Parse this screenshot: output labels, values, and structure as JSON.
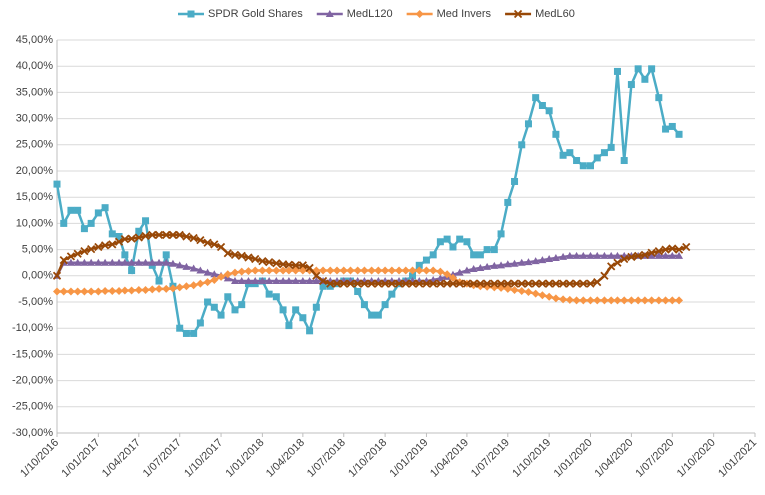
{
  "chart_data": {
    "type": "line",
    "x": [
      "2016-10-01",
      "2016-10-16",
      "2016-11-01",
      "2016-11-16",
      "2016-12-01",
      "2016-12-16",
      "2017-01-01",
      "2017-01-16",
      "2017-02-01",
      "2017-02-16",
      "2017-03-01",
      "2017-03-16",
      "2017-04-01",
      "2017-04-16",
      "2017-05-01",
      "2017-05-16",
      "2017-06-01",
      "2017-06-16",
      "2017-07-01",
      "2017-07-16",
      "2017-08-01",
      "2017-08-16",
      "2017-09-01",
      "2017-09-16",
      "2017-10-01",
      "2017-10-16",
      "2017-11-01",
      "2017-11-16",
      "2017-12-01",
      "2017-12-16",
      "2018-01-01",
      "2018-01-16",
      "2018-02-01",
      "2018-02-16",
      "2018-03-01",
      "2018-03-16",
      "2018-04-01",
      "2018-04-16",
      "2018-05-01",
      "2018-05-16",
      "2018-06-01",
      "2018-06-16",
      "2018-07-01",
      "2018-07-16",
      "2018-08-01",
      "2018-08-16",
      "2018-09-01",
      "2018-09-16",
      "2018-10-01",
      "2018-10-16",
      "2018-11-01",
      "2018-11-16",
      "2018-12-01",
      "2018-12-16",
      "2019-01-01",
      "2019-01-16",
      "2019-02-01",
      "2019-02-16",
      "2019-03-01",
      "2019-03-16",
      "2019-04-01",
      "2019-04-16",
      "2019-05-01",
      "2019-05-16",
      "2019-06-01",
      "2019-06-16",
      "2019-07-01",
      "2019-07-16",
      "2019-08-01",
      "2019-08-16",
      "2019-09-01",
      "2019-09-16",
      "2019-10-01",
      "2019-10-16",
      "2019-11-01",
      "2019-11-16",
      "2019-12-01",
      "2019-12-16",
      "2020-01-01",
      "2020-01-16",
      "2020-02-01",
      "2020-02-16",
      "2020-03-01",
      "2020-03-16",
      "2020-04-01",
      "2020-04-16",
      "2020-05-01",
      "2020-05-16",
      "2020-06-01",
      "2020-06-16",
      "2020-07-01",
      "2020-07-16",
      "2020-08-01"
    ],
    "series": [
      {
        "name": "SPDR Gold Shares",
        "color": "#4bacc6",
        "marker": "square",
        "values": [
          17.5,
          10,
          12.5,
          12.5,
          9,
          10,
          12,
          13,
          8,
          7.5,
          4,
          1,
          8.5,
          10.5,
          2,
          -1,
          4,
          -2,
          -10,
          -11,
          -11,
          -9,
          -5,
          -6,
          -7.5,
          -4,
          -6.5,
          -5.5,
          -1.5,
          -1.5,
          -1,
          -3.5,
          -4,
          -6.5,
          -9.5,
          -6.5,
          -8,
          -10.5,
          -6,
          -2,
          -2,
          -1.5,
          -1,
          -1,
          -3,
          -5.5,
          -7.5,
          -7.5,
          -5.5,
          -3.5,
          -1.5,
          -1,
          0,
          2,
          3,
          4,
          6.5,
          7,
          5.5,
          7,
          6.5,
          4,
          4,
          5,
          5,
          8,
          14,
          18,
          25,
          29,
          34,
          32.5,
          31.5,
          27,
          23,
          23.5,
          22,
          21,
          21,
          22.5,
          23.5,
          24.5,
          39,
          22,
          36.5,
          39.5,
          37.5,
          39.5,
          34,
          28,
          28.5,
          27,
          null
        ]
      },
      {
        "name": "MedL120",
        "color": "#8064a2",
        "marker": "triangle",
        "values": [
          0,
          2.5,
          2.5,
          2.5,
          2.5,
          2.5,
          2.5,
          2.5,
          2.5,
          2.5,
          2.5,
          2.5,
          2.5,
          2.5,
          2.5,
          2.5,
          2.5,
          2.3,
          2,
          1.7,
          1.4,
          1,
          0.6,
          0.3,
          0,
          -0.5,
          -1,
          -1,
          -1,
          -1,
          -1,
          -1,
          -1,
          -1,
          -1,
          -1,
          -1,
          -1,
          -1,
          -1,
          -1,
          -1,
          -1,
          -1,
          -1,
          -1,
          -1,
          -1,
          -1,
          -1,
          -1,
          -1,
          -1,
          -1,
          -1,
          -0.8,
          -0.5,
          -0.2,
          0.2,
          0.6,
          1,
          1.3,
          1.5,
          1.7,
          1.9,
          2,
          2.2,
          2.3,
          2.5,
          2.6,
          2.8,
          3,
          3.2,
          3.4,
          3.6,
          3.8,
          3.8,
          3.8,
          3.8,
          3.8,
          3.8,
          3.8,
          3.8,
          3.8,
          3.8,
          3.8,
          3.8,
          3.8,
          3.8,
          3.8,
          3.8,
          3.8,
          null
        ]
      },
      {
        "name": "Med Invers",
        "color": "#f79646",
        "marker": "diamond",
        "values": [
          -3,
          -3,
          -3,
          -3,
          -3,
          -3,
          -3,
          -2.9,
          -2.9,
          -2.9,
          -2.8,
          -2.8,
          -2.7,
          -2.7,
          -2.6,
          -2.5,
          -2.5,
          -2.4,
          -2.2,
          -2,
          -1.8,
          -1.5,
          -1.2,
          -0.8,
          -0.2,
          0.3,
          0.6,
          0.8,
          0.9,
          1,
          1,
          1,
          1,
          1,
          1,
          1,
          1,
          1,
          1,
          1,
          1,
          1,
          1,
          1,
          1,
          1,
          1,
          1,
          1,
          1,
          1,
          1,
          1,
          1,
          1,
          1,
          0.8,
          0.3,
          -0.4,
          -1.2,
          -1.5,
          -1.8,
          -2,
          -2.1,
          -2.2,
          -2.3,
          -2.5,
          -2.7,
          -2.9,
          -3.1,
          -3.4,
          -3.7,
          -4,
          -4.3,
          -4.5,
          -4.6,
          -4.7,
          -4.7,
          -4.7,
          -4.7,
          -4.7,
          -4.7,
          -4.7,
          -4.7,
          -4.7,
          -4.7,
          -4.7,
          -4.7,
          -4.7,
          -4.7,
          -4.7,
          -4.7,
          null
        ]
      },
      {
        "name": "MedL60",
        "color": "#984807",
        "marker": "x",
        "values": [
          0,
          3,
          3.7,
          4.2,
          4.7,
          5.1,
          5.5,
          5.8,
          6,
          6.5,
          7,
          7.1,
          7.3,
          7.6,
          7.8,
          7.8,
          7.8,
          7.8,
          7.8,
          7.5,
          7.2,
          6.8,
          6.3,
          6,
          5.5,
          4.3,
          4,
          3.8,
          3.5,
          3.2,
          2.8,
          2.6,
          2.4,
          2.2,
          2.1,
          2,
          2,
          1.5,
          0,
          -1,
          -1.5,
          -1.5,
          -1.5,
          -1.5,
          -1.5,
          -1.5,
          -1.5,
          -1.5,
          -1.5,
          -1.5,
          -1.5,
          -1.5,
          -1.5,
          -1.5,
          -1.5,
          -1.5,
          -1.5,
          -1.5,
          -1.5,
          -1.5,
          -1.5,
          -1.5,
          -1.5,
          -1.5,
          -1.5,
          -1.5,
          -1.5,
          -1.5,
          -1.5,
          -1.5,
          -1.5,
          -1.5,
          -1.5,
          -1.5,
          -1.5,
          -1.5,
          -1.5,
          -1.5,
          -1.5,
          -1.2,
          0,
          1.8,
          2.5,
          3.2,
          3.6,
          3.8,
          4,
          4.4,
          4.7,
          5,
          5.2,
          5,
          5.5
        ]
      }
    ],
    "xlim": [
      "2016-10-01",
      "2021-01-01"
    ],
    "xticks": [
      {
        "value": "2016-10-01",
        "label": "1/10/2016"
      },
      {
        "value": "2017-01-01",
        "label": "1/01/2017"
      },
      {
        "value": "2017-04-01",
        "label": "1/04/2017"
      },
      {
        "value": "2017-07-01",
        "label": "1/07/2017"
      },
      {
        "value": "2017-10-01",
        "label": "1/10/2017"
      },
      {
        "value": "2018-01-01",
        "label": "1/01/2018"
      },
      {
        "value": "2018-04-01",
        "label": "1/04/2018"
      },
      {
        "value": "2018-07-01",
        "label": "1/07/2018"
      },
      {
        "value": "2018-10-01",
        "label": "1/10/2018"
      },
      {
        "value": "2019-01-01",
        "label": "1/01/2019"
      },
      {
        "value": "2019-04-01",
        "label": "1/04/2019"
      },
      {
        "value": "2019-07-01",
        "label": "1/07/2019"
      },
      {
        "value": "2019-10-01",
        "label": "1/10/2019"
      },
      {
        "value": "2020-01-01",
        "label": "1/01/2020"
      },
      {
        "value": "2020-04-01",
        "label": "1/04/2020"
      },
      {
        "value": "2020-07-01",
        "label": "1/07/2020"
      },
      {
        "value": "2020-10-01",
        "label": "1/10/2020"
      },
      {
        "value": "2021-01-01",
        "label": "1/01/2021"
      }
    ],
    "ylim": [
      -30,
      45
    ],
    "yticks": [
      {
        "value": -30,
        "label": "-30,00%"
      },
      {
        "value": -25,
        "label": "-25,00%"
      },
      {
        "value": -20,
        "label": "-20,00%"
      },
      {
        "value": -15,
        "label": "-15,00%"
      },
      {
        "value": -10,
        "label": "-10,00%"
      },
      {
        "value": -5,
        "label": "-5,00%"
      },
      {
        "value": 0,
        "label": "0,00%"
      },
      {
        "value": 5,
        "label": "5,00%"
      },
      {
        "value": 10,
        "label": "10,00%"
      },
      {
        "value": 15,
        "label": "15,00%"
      },
      {
        "value": 20,
        "label": "20,00%"
      },
      {
        "value": 25,
        "label": "25,00%"
      },
      {
        "value": 30,
        "label": "30,00%"
      },
      {
        "value": 35,
        "label": "35,00%"
      },
      {
        "value": 40,
        "label": "40,00%"
      },
      {
        "value": 45,
        "label": "45,00%"
      }
    ],
    "grid": true,
    "legend": "top"
  }
}
